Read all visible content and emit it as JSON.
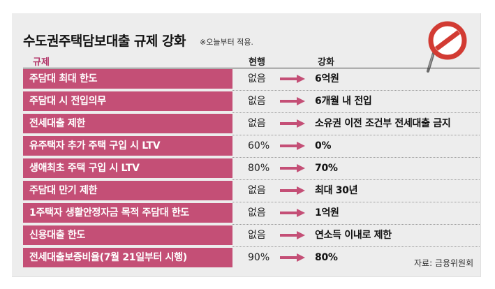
{
  "title": "수도권주택담보대출 규제 강화",
  "note": "※오늘부터 적용.",
  "headers": {
    "regulation": "규제",
    "current": "현행",
    "strengthened": "강화"
  },
  "rows": [
    {
      "label": "주담대 최대 한도",
      "current": "없음",
      "new": "6억원"
    },
    {
      "label": "주담대 시 전입의무",
      "current": "없음",
      "new": "6개월 내 전입"
    },
    {
      "label": "전세대출 제한",
      "current": "없음",
      "new": "소유권 이전 조건부 전세대출 금지"
    },
    {
      "label": "유주택자 추가 주택 구입 시 LTV",
      "current": "60%",
      "new": "0%"
    },
    {
      "label": "생애최초 주택 구입 시 LTV",
      "current": "80%",
      "new": "70%"
    },
    {
      "label": "주담대 만기 제한",
      "current": "없음",
      "new": "최대 30년"
    },
    {
      "label": "1주택자 생활안정자금 목적 주담대 한도",
      "current": "없음",
      "new": "1억원"
    },
    {
      "label": "신용대출 한도",
      "current": "없음",
      "new": "연소득 이내로 제한"
    },
    {
      "label": "전세대출보증비율(7월 21일부터 시행)",
      "current": "90%",
      "new": "80%"
    }
  ],
  "source": "자료: 금융위원회",
  "colors": {
    "accent": "#c44f76",
    "header_accent": "#b23468",
    "background": "#ededed",
    "sign_red": "#d23b33"
  },
  "icons": {
    "arrow": "right-arrow-icon",
    "sign": "no-entry-sign-icon"
  }
}
